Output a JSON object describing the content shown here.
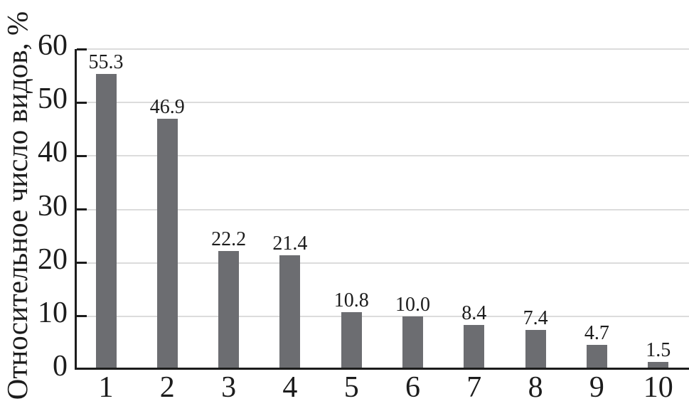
{
  "chart_data": {
    "type": "bar",
    "categories": [
      "1",
      "2",
      "3",
      "4",
      "5",
      "6",
      "7",
      "8",
      "9",
      "10"
    ],
    "values": [
      55.3,
      46.9,
      22.2,
      21.4,
      10.8,
      10.0,
      8.4,
      7.4,
      4.7,
      1.5
    ],
    "value_labels": [
      "55.3",
      "46.9",
      "22.2",
      "21.4",
      "10.8",
      "10.0",
      "8.4",
      "7.4",
      "4.7",
      "1.5"
    ],
    "title": "",
    "xlabel": "",
    "ylabel": "Относительное число видов, %",
    "ylim": [
      0,
      60
    ],
    "yticks": [
      0,
      10,
      20,
      30,
      40,
      50,
      60
    ],
    "grid": true,
    "legend_position": "none",
    "bar_color": "#6c6d71",
    "axis_color": "#1c1c1c",
    "grid_color": "#dcdcdc",
    "text_color": "#1c1c1c"
  }
}
